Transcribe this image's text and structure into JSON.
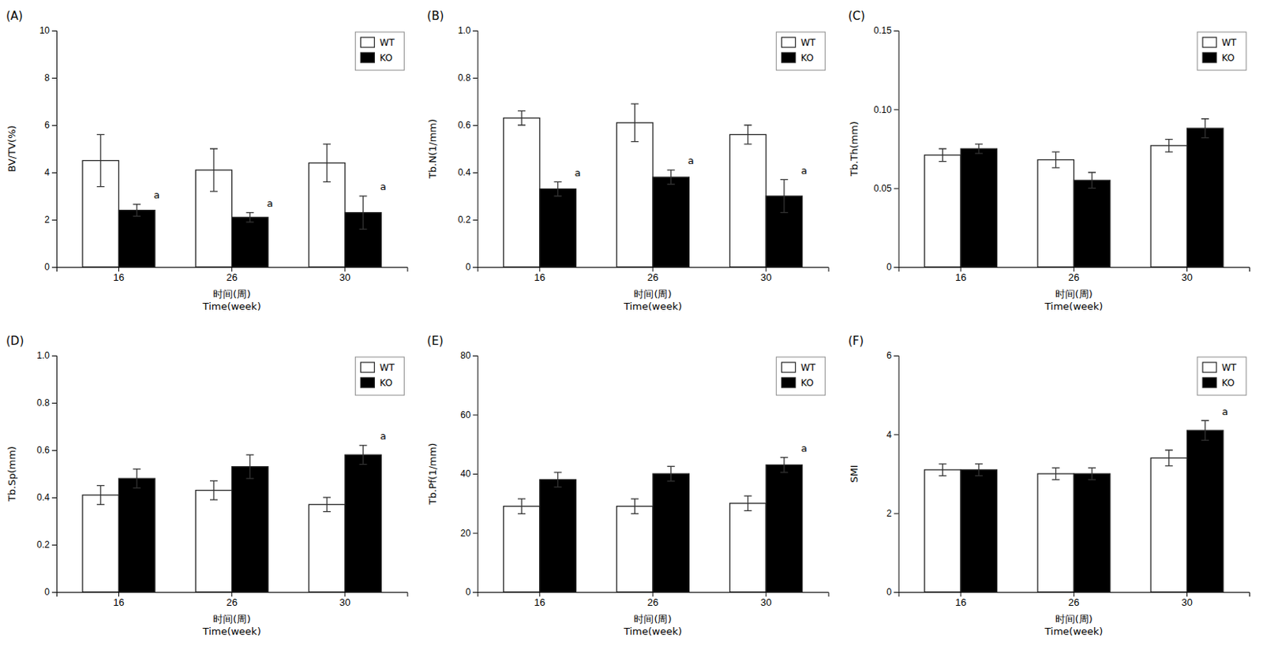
{
  "chart_data": [
    {
      "type": "bar",
      "title": "(A)",
      "ylabel": "BV/TV(%)",
      "xlabel": "时间(周)\nTime(week)",
      "categories": [
        "16",
        "26",
        "30"
      ],
      "series": [
        {
          "name": "WT",
          "color": "white",
          "values": [
            4.5,
            4.1,
            4.4
          ],
          "errors": [
            1.1,
            0.9,
            0.8
          ]
        },
        {
          "name": "KO",
          "color": "black",
          "values": [
            2.4,
            2.1,
            2.3
          ],
          "errors": [
            0.25,
            0.2,
            0.7
          ]
        }
      ],
      "annotations": [
        {
          "text": "a",
          "category": "16",
          "series": "KO"
        },
        {
          "text": "a",
          "category": "26",
          "series": "KO"
        },
        {
          "text": "a",
          "category": "30",
          "series": "KO"
        }
      ],
      "ylim": [
        0,
        10
      ],
      "yticks": [
        0,
        2,
        4,
        6,
        8,
        10
      ],
      "grid": false,
      "legend": "upper right"
    },
    {
      "type": "bar",
      "title": "(B)",
      "ylabel": "Tb.N(1/mm)",
      "xlabel": "时间(周)\nTime(week)",
      "categories": [
        "16",
        "26",
        "30"
      ],
      "series": [
        {
          "name": "WT",
          "color": "white",
          "values": [
            0.63,
            0.61,
            0.56
          ],
          "errors": [
            0.03,
            0.08,
            0.04
          ]
        },
        {
          "name": "KO",
          "color": "black",
          "values": [
            0.33,
            0.38,
            0.3
          ],
          "errors": [
            0.03,
            0.03,
            0.07
          ]
        }
      ],
      "annotations": [
        {
          "text": "a",
          "category": "16",
          "series": "KO"
        },
        {
          "text": "a",
          "category": "26",
          "series": "KO"
        },
        {
          "text": "a",
          "category": "30",
          "series": "KO"
        }
      ],
      "ylim": [
        0,
        1.0
      ],
      "yticks": [
        0,
        0.2,
        0.4,
        0.6,
        0.8,
        {
          "value": 1.0,
          "label": "1.0"
        }
      ],
      "grid": false,
      "legend": "upper right"
    },
    {
      "type": "bar",
      "title": "(C)",
      "ylabel": "Tb.Th(mm)",
      "xlabel": "时间(周)\nTime(week)",
      "categories": [
        "16",
        "26",
        "30"
      ],
      "series": [
        {
          "name": "WT",
          "color": "white",
          "values": [
            0.071,
            0.068,
            0.077
          ],
          "errors": [
            0.004,
            0.005,
            0.004
          ]
        },
        {
          "name": "KO",
          "color": "black",
          "values": [
            0.075,
            0.055,
            0.088
          ],
          "errors": [
            0.003,
            0.005,
            0.006
          ]
        }
      ],
      "annotations": [],
      "ylim": [
        0,
        0.15
      ],
      "yticks": [
        0,
        0.05,
        {
          "value": 0.1,
          "label": "0.10"
        },
        0.15
      ],
      "grid": false,
      "legend": "upper right"
    },
    {
      "type": "bar",
      "title": "(D)",
      "ylabel": "Tb.Sp(mm)",
      "xlabel": "时间(周)\nTime(week)",
      "categories": [
        "16",
        "26",
        "30"
      ],
      "series": [
        {
          "name": "WT",
          "color": "white",
          "values": [
            0.41,
            0.43,
            0.37
          ],
          "errors": [
            0.04,
            0.04,
            0.03
          ]
        },
        {
          "name": "KO",
          "color": "black",
          "values": [
            0.48,
            0.53,
            0.58
          ],
          "errors": [
            0.04,
            0.05,
            0.04
          ]
        }
      ],
      "annotations": [
        {
          "text": "a",
          "category": "30",
          "series": "KO"
        }
      ],
      "ylim": [
        0,
        1.0
      ],
      "yticks": [
        0,
        0.2,
        0.4,
        0.6,
        0.8,
        {
          "value": 1.0,
          "label": "1.0"
        }
      ],
      "grid": false,
      "legend": "upper right"
    },
    {
      "type": "bar",
      "title": "(E)",
      "ylabel": "Tb.Pf(1/mm)",
      "xlabel": "时间(周)\nTime(week)",
      "categories": [
        "16",
        "26",
        "30"
      ],
      "series": [
        {
          "name": "WT",
          "color": "white",
          "values": [
            29,
            29,
            30
          ],
          "errors": [
            2.5,
            2.5,
            2.5
          ]
        },
        {
          "name": "KO",
          "color": "black",
          "values": [
            38,
            40,
            43
          ],
          "errors": [
            2.5,
            2.5,
            2.5
          ]
        }
      ],
      "annotations": [
        {
          "text": "a",
          "category": "30",
          "series": "KO"
        }
      ],
      "ylim": [
        0,
        80
      ],
      "yticks": [
        0,
        20,
        40,
        60,
        80
      ],
      "grid": false,
      "legend": "upper right"
    },
    {
      "type": "bar",
      "title": "(F)",
      "ylabel": "SMI",
      "xlabel": "时间(周)\nTime(week)",
      "categories": [
        "16",
        "26",
        "30"
      ],
      "series": [
        {
          "name": "WT",
          "color": "white",
          "values": [
            3.1,
            3.0,
            3.4
          ],
          "errors": [
            0.15,
            0.15,
            0.2
          ]
        },
        {
          "name": "KO",
          "color": "black",
          "values": [
            3.1,
            3.0,
            4.1
          ],
          "errors": [
            0.15,
            0.15,
            0.25
          ]
        }
      ],
      "annotations": [
        {
          "text": "a",
          "category": "30",
          "series": "KO"
        }
      ],
      "ylim": [
        0,
        6
      ],
      "yticks": [
        0,
        2,
        4,
        6
      ],
      "grid": false,
      "legend": "upper right"
    }
  ]
}
